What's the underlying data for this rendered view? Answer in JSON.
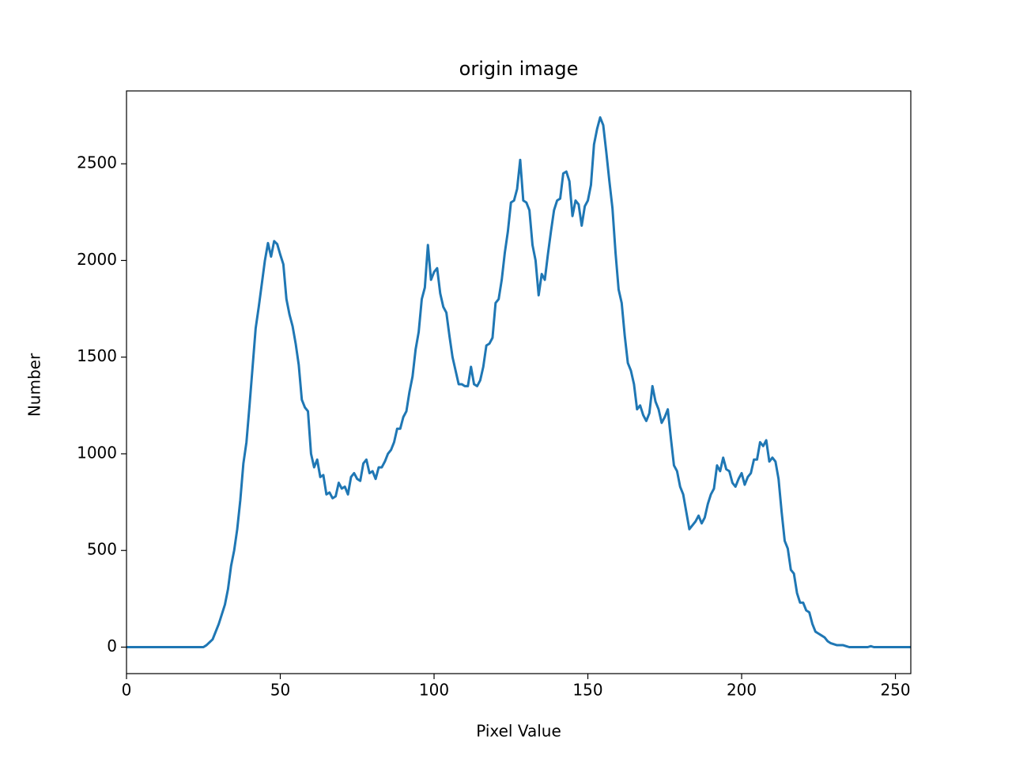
{
  "chart_data": {
    "type": "line",
    "title": "origin image",
    "x_label": "Pixel Value",
    "y_label": "Number",
    "color": "#1f77b4",
    "x": [
      0,
      1,
      2,
      3,
      4,
      5,
      6,
      7,
      8,
      9,
      10,
      11,
      12,
      13,
      14,
      15,
      16,
      17,
      18,
      19,
      20,
      21,
      22,
      23,
      24,
      25,
      26,
      27,
      28,
      29,
      30,
      31,
      32,
      33,
      34,
      35,
      36,
      37,
      38,
      39,
      40,
      41,
      42,
      43,
      44,
      45,
      46,
      47,
      48,
      49,
      50,
      51,
      52,
      53,
      54,
      55,
      56,
      57,
      58,
      59,
      60,
      61,
      62,
      63,
      64,
      65,
      66,
      67,
      68,
      69,
      70,
      71,
      72,
      73,
      74,
      75,
      76,
      77,
      78,
      79,
      80,
      81,
      82,
      83,
      84,
      85,
      86,
      87,
      88,
      89,
      90,
      91,
      92,
      93,
      94,
      95,
      96,
      97,
      98,
      99,
      100,
      101,
      102,
      103,
      104,
      105,
      106,
      107,
      108,
      109,
      110,
      111,
      112,
      113,
      114,
      115,
      116,
      117,
      118,
      119,
      120,
      121,
      122,
      123,
      124,
      125,
      126,
      127,
      128,
      129,
      130,
      131,
      132,
      133,
      134,
      135,
      136,
      137,
      138,
      139,
      140,
      141,
      142,
      143,
      144,
      145,
      146,
      147,
      148,
      149,
      150,
      151,
      152,
      153,
      154,
      155,
      156,
      157,
      158,
      159,
      160,
      161,
      162,
      163,
      164,
      165,
      166,
      167,
      168,
      169,
      170,
      171,
      172,
      173,
      174,
      175,
      176,
      177,
      178,
      179,
      180,
      181,
      182,
      183,
      184,
      185,
      186,
      187,
      188,
      189,
      190,
      191,
      192,
      193,
      194,
      195,
      196,
      197,
      198,
      199,
      200,
      201,
      202,
      203,
      204,
      205,
      206,
      207,
      208,
      209,
      210,
      211,
      212,
      213,
      214,
      215,
      216,
      217,
      218,
      219,
      220,
      221,
      222,
      223,
      224,
      225,
      226,
      227,
      228,
      229,
      230,
      231,
      232,
      233,
      234,
      235,
      236,
      237,
      238,
      239,
      240,
      241,
      242,
      243,
      244,
      245,
      246,
      247,
      248,
      249,
      250,
      251,
      252,
      253,
      254,
      255
    ],
    "values": [
      0,
      0,
      0,
      0,
      0,
      0,
      0,
      0,
      0,
      0,
      0,
      0,
      0,
      0,
      0,
      0,
      0,
      0,
      0,
      0,
      0,
      0,
      0,
      0,
      0,
      0,
      10,
      25,
      40,
      80,
      120,
      170,
      220,
      300,
      420,
      500,
      610,
      760,
      950,
      1060,
      1250,
      1450,
      1650,
      1760,
      1880,
      2000,
      2090,
      2020,
      2100,
      2085,
      2030,
      1980,
      1800,
      1720,
      1660,
      1570,
      1460,
      1280,
      1240,
      1220,
      1000,
      930,
      970,
      880,
      890,
      790,
      800,
      770,
      780,
      850,
      820,
      830,
      790,
      880,
      900,
      870,
      860,
      950,
      970,
      900,
      910,
      870,
      930,
      930,
      960,
      1000,
      1020,
      1060,
      1130,
      1130,
      1190,
      1220,
      1320,
      1400,
      1540,
      1630,
      1800,
      1860,
      2080,
      1900,
      1940,
      1960,
      1830,
      1760,
      1730,
      1610,
      1500,
      1430,
      1360,
      1360,
      1350,
      1350,
      1450,
      1360,
      1350,
      1380,
      1450,
      1560,
      1570,
      1600,
      1780,
      1800,
      1900,
      2040,
      2150,
      2300,
      2310,
      2370,
      2520,
      2310,
      2300,
      2260,
      2080,
      2000,
      1820,
      1930,
      1900,
      2030,
      2150,
      2260,
      2310,
      2320,
      2450,
      2460,
      2410,
      2230,
      2310,
      2290,
      2180,
      2280,
      2310,
      2390,
      2600,
      2680,
      2740,
      2700,
      2560,
      2410,
      2270,
      2040,
      1850,
      1780,
      1610,
      1470,
      1430,
      1360,
      1230,
      1250,
      1200,
      1170,
      1210,
      1350,
      1270,
      1230,
      1160,
      1190,
      1230,
      1080,
      940,
      910,
      830,
      790,
      700,
      610,
      630,
      650,
      680,
      640,
      670,
      740,
      790,
      820,
      940,
      910,
      980,
      920,
      910,
      850,
      830,
      870,
      900,
      840,
      880,
      900,
      970,
      970,
      1060,
      1040,
      1070,
      960,
      980,
      960,
      870,
      700,
      550,
      510,
      400,
      380,
      280,
      230,
      230,
      190,
      180,
      120,
      80,
      70,
      60,
      50,
      30,
      20,
      15,
      10,
      10,
      10,
      5,
      0,
      0,
      0,
      0,
      0,
      0,
      0,
      5,
      0,
      0,
      0,
      0,
      0,
      0,
      0,
      0,
      0,
      0,
      0,
      0,
      0
    ],
    "xlim": [
      0,
      255
    ],
    "xticks": [
      0,
      50,
      100,
      150,
      200,
      250
    ],
    "ylim": [
      -137,
      2877
    ],
    "yticks": [
      0,
      500,
      1000,
      1500,
      2000,
      2500
    ]
  }
}
